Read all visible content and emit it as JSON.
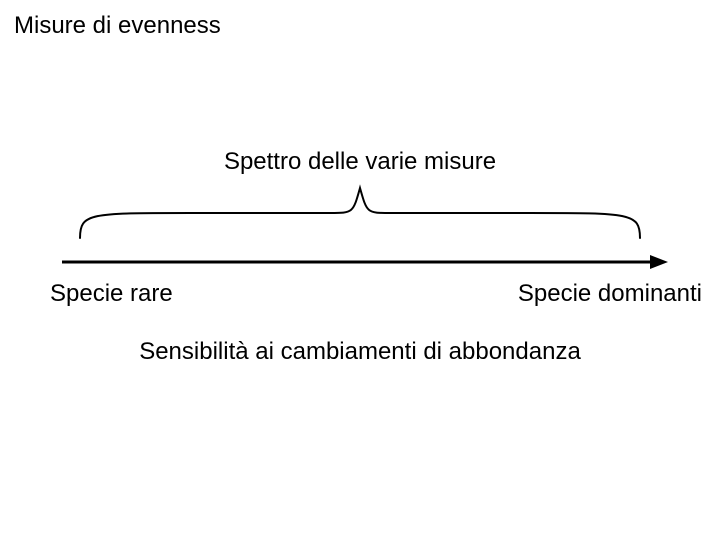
{
  "slide": {
    "title": "Misure di evenness",
    "rule_color": "#1f3b99",
    "subtitle": "Spettro delle varie misure",
    "axis": {
      "left_label": "Specie rare",
      "right_label": "Specie dominanti",
      "caption": "Sensibilità ai cambiamenti di abbondanza",
      "arrow": {
        "color": "#000000",
        "stroke_width": 3,
        "head_width": 18,
        "head_height": 14
      },
      "brace": {
        "color": "#000000",
        "stroke_width": 2
      }
    },
    "background_color": "#ffffff",
    "text_color": "#000000",
    "font_family": "Arial, Helvetica, sans-serif",
    "title_fontsize": 24,
    "body_fontsize": 24
  }
}
